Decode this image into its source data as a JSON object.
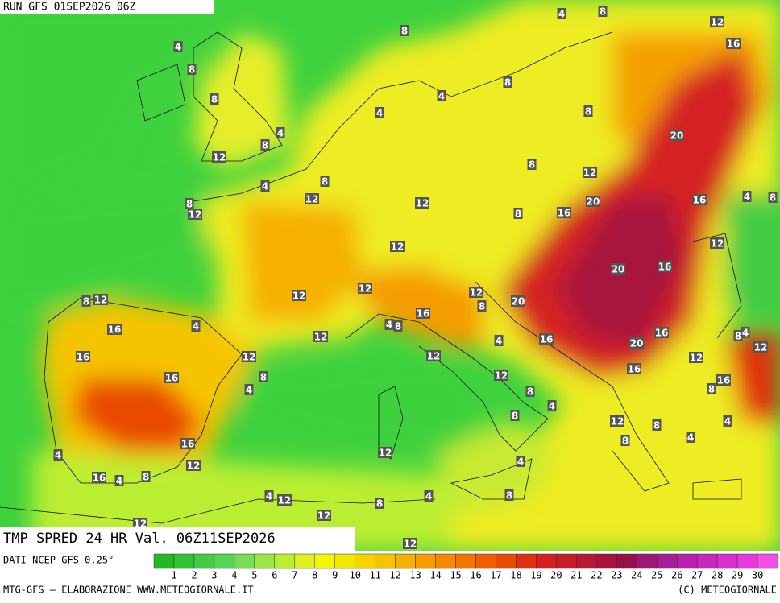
{
  "header": {
    "run": "RUN GFS 01SEP2026 06Z"
  },
  "map": {
    "title": "TMP SPRED 24 HR Val. 06Z11SEP2026",
    "labels": [
      4,
      8,
      8,
      4,
      8,
      12,
      4,
      4,
      8,
      4,
      8,
      12,
      16,
      8,
      8,
      20,
      8,
      12,
      8,
      4,
      12,
      12,
      20,
      16,
      4,
      8,
      8,
      12,
      16,
      8,
      12,
      12,
      20,
      16,
      12,
      12,
      12,
      8,
      20,
      8,
      12,
      16,
      4,
      8,
      16,
      4,
      12,
      16,
      8,
      4,
      16,
      4,
      12,
      16,
      20,
      12,
      12,
      12,
      16,
      8,
      16,
      12,
      16,
      4,
      8,
      8,
      8,
      4,
      12,
      8,
      4,
      16,
      8,
      4,
      12,
      4,
      12,
      4,
      16,
      4,
      8,
      8,
      4,
      12,
      4,
      8,
      12,
      12,
      12
    ]
  },
  "footer": {
    "source": "DATI NCEP GFS 0.25°",
    "credit": "MTG-GFS — ELABORAZIONE WWW.METEOGIORNALE.IT",
    "copyright": "(C) METEOGIORNALE"
  },
  "scale": {
    "colors": [
      "#22b822",
      "#33c433",
      "#44cc44",
      "#55d455",
      "#77dd55",
      "#99e644",
      "#bbee33",
      "#ddf022",
      "#f5f500",
      "#f5e600",
      "#f5d500",
      "#f5c400",
      "#f5b000",
      "#f59c00",
      "#f58800",
      "#f57400",
      "#f06000",
      "#ea4a00",
      "#e03010",
      "#d42020",
      "#c81c2a",
      "#b81834",
      "#a8143e",
      "#981048",
      "#9a1a7a",
      "#a81e96",
      "#b822aa",
      "#c828bc",
      "#d830cc",
      "#e838dc",
      "#f050e8"
    ],
    "labels": [
      1,
      2,
      3,
      4,
      5,
      6,
      7,
      8,
      9,
      10,
      11,
      12,
      13,
      14,
      15,
      16,
      17,
      18,
      19,
      20,
      21,
      22,
      23,
      24,
      25,
      26,
      27,
      28,
      29,
      30
    ]
  }
}
